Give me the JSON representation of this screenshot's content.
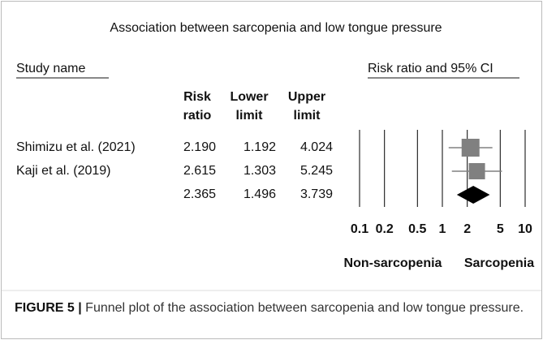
{
  "chart_data": {
    "type": "forest",
    "title": "Association between sarcopenia and low tongue pressure",
    "headers": {
      "study": "Study name",
      "plot": "Risk ratio and 95% CI",
      "ratio": [
        "Risk",
        "ratio"
      ],
      "lower": [
        "Lower",
        "limit"
      ],
      "upper": [
        "Upper",
        "limit"
      ]
    },
    "categories": [
      "Shimizu et al. (2021)",
      "Kaji et al. (2019)",
      null
    ],
    "values": [
      2.19,
      2.615,
      2.365
    ],
    "value_labels": [
      "2.190",
      "2.615",
      "2.365"
    ],
    "lower": [
      1.192,
      1.303,
      1.496
    ],
    "lower_labels": [
      "1.192",
      "1.303",
      "1.496"
    ],
    "upper": [
      4.024,
      5.245,
      3.739
    ],
    "upper_labels": [
      "4.024",
      "5.245",
      "3.739"
    ],
    "xscale": "log",
    "xlim": [
      0.1,
      10
    ],
    "xticks": [
      0.1,
      0.2,
      0.5,
      1,
      2,
      5,
      10
    ],
    "side_labels": {
      "left": "Non-sarcopenia",
      "right": "Sarcopenia"
    },
    "color": "#808080",
    "summary_color": "#000000"
  },
  "caption": {
    "label": "FIGURE 5 |",
    "text": "Funnel plot of the association between sarcopenia and low tongue pressure."
  }
}
